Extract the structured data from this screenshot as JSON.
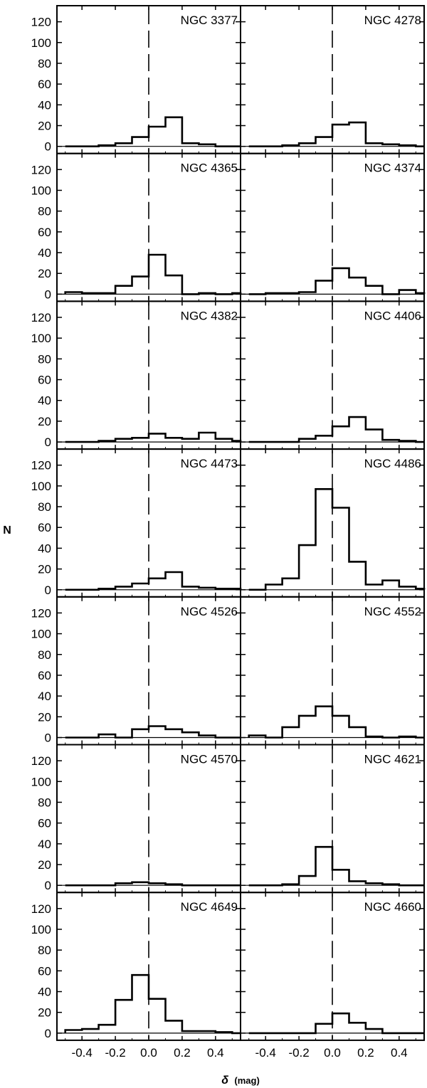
{
  "figure": {
    "ylabel": "N",
    "xlabel_symbol": "δ",
    "xlabel_unit": "(mag)"
  },
  "chart_data": {
    "type": "histogram-grid",
    "rows": 7,
    "cols": 2,
    "bin_width": 0.1,
    "bin_starts": [
      -0.5,
      -0.4,
      -0.3,
      -0.2,
      -0.1,
      0.0,
      0.1,
      0.2,
      0.3,
      0.4,
      0.5
    ],
    "xlim": [
      -0.55,
      0.55
    ],
    "ylim": [
      -5,
      130
    ],
    "x_ticks": [
      -0.4,
      -0.2,
      0.0,
      0.2,
      0.4
    ],
    "x_tick_labels": [
      "-0.4",
      "-0.2",
      "0.0",
      "0.2",
      "0.4"
    ],
    "y_ticks": [
      0,
      20,
      40,
      60,
      80,
      100,
      120
    ],
    "y_tick_labels": [
      "0",
      "20",
      "40",
      "60",
      "80",
      "100",
      "120"
    ],
    "reference_line": {
      "x": 0.0,
      "style": "dashed"
    },
    "panels": [
      {
        "name": "NGC 3377",
        "counts": [
          0,
          0,
          1,
          3,
          9,
          19,
          28,
          3,
          2,
          0,
          0
        ]
      },
      {
        "name": "NGC 4278",
        "counts": [
          0,
          0,
          1,
          3,
          9,
          21,
          23,
          3,
          2,
          1,
          0
        ]
      },
      {
        "name": "NGC 4365",
        "counts": [
          2,
          1,
          1,
          8,
          17,
          38,
          18,
          0,
          1,
          0,
          1
        ]
      },
      {
        "name": "NGC 4374",
        "counts": [
          0,
          1,
          1,
          2,
          13,
          25,
          16,
          8,
          0,
          4,
          1
        ]
      },
      {
        "name": "NGC 4382",
        "counts": [
          0,
          0,
          1,
          3,
          4,
          8,
          4,
          3,
          9,
          3,
          1
        ]
      },
      {
        "name": "NGC 4406",
        "counts": [
          0,
          0,
          0,
          3,
          6,
          15,
          24,
          12,
          2,
          1,
          0
        ]
      },
      {
        "name": "NGC 4473",
        "counts": [
          0,
          0,
          1,
          3,
          6,
          11,
          17,
          3,
          2,
          1,
          1
        ]
      },
      {
        "name": "NGC 4486",
        "counts": [
          0,
          5,
          11,
          43,
          97,
          79,
          27,
          5,
          9,
          3,
          1
        ]
      },
      {
        "name": "NGC 4526",
        "counts": [
          0,
          0,
          3,
          0,
          8,
          11,
          8,
          5,
          2,
          0,
          0
        ]
      },
      {
        "name": "NGC 4552",
        "counts": [
          2,
          0,
          10,
          21,
          30,
          21,
          10,
          1,
          0,
          1,
          0
        ]
      },
      {
        "name": "NGC 4570",
        "counts": [
          0,
          0,
          0,
          2,
          3,
          2,
          1,
          0,
          0,
          0,
          0
        ]
      },
      {
        "name": "NGC 4621",
        "counts": [
          0,
          0,
          1,
          9,
          37,
          15,
          4,
          2,
          1,
          0,
          0
        ]
      },
      {
        "name": "NGC 4649",
        "counts": [
          3,
          4,
          8,
          32,
          56,
          33,
          12,
          2,
          2,
          1,
          0
        ]
      },
      {
        "name": "NGC 4660",
        "counts": [
          0,
          0,
          0,
          0,
          9,
          19,
          10,
          4,
          0,
          0,
          0
        ]
      }
    ]
  }
}
